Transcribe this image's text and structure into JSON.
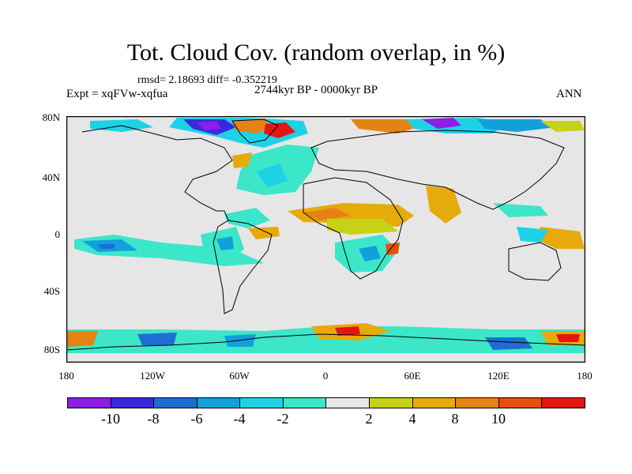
{
  "header": {
    "title": "Tot. Cloud Cov. (random overlap, in %)",
    "stats": "rmsd= 2.18693 diff= -0.352219",
    "period": "2744kyr BP - 0000kyr BP",
    "experiment": "Expt = xqFVw-xqfua",
    "season": "ANN"
  },
  "map": {
    "lat_ticks": [
      "80N",
      "40N",
      "0",
      "40S",
      "80S"
    ],
    "lon_ticks": [
      "180",
      "120W",
      "60W",
      "0",
      "60E",
      "120E",
      "180"
    ],
    "background_color": "#e6e6e6",
    "coastline_color": "#000000"
  },
  "colorbar": {
    "colors": [
      "#8c1ee6",
      "#3c28dc",
      "#1e6ed2",
      "#12a0dc",
      "#1ed2e6",
      "#3ce6c8",
      "#e6e6e6",
      "#c8d214",
      "#e6aa0a",
      "#e68214",
      "#e6500a",
      "#e61414"
    ],
    "labels": [
      "-10",
      "-8",
      "-6",
      "-4",
      "-2",
      "2",
      "4",
      "8",
      "10"
    ]
  }
}
